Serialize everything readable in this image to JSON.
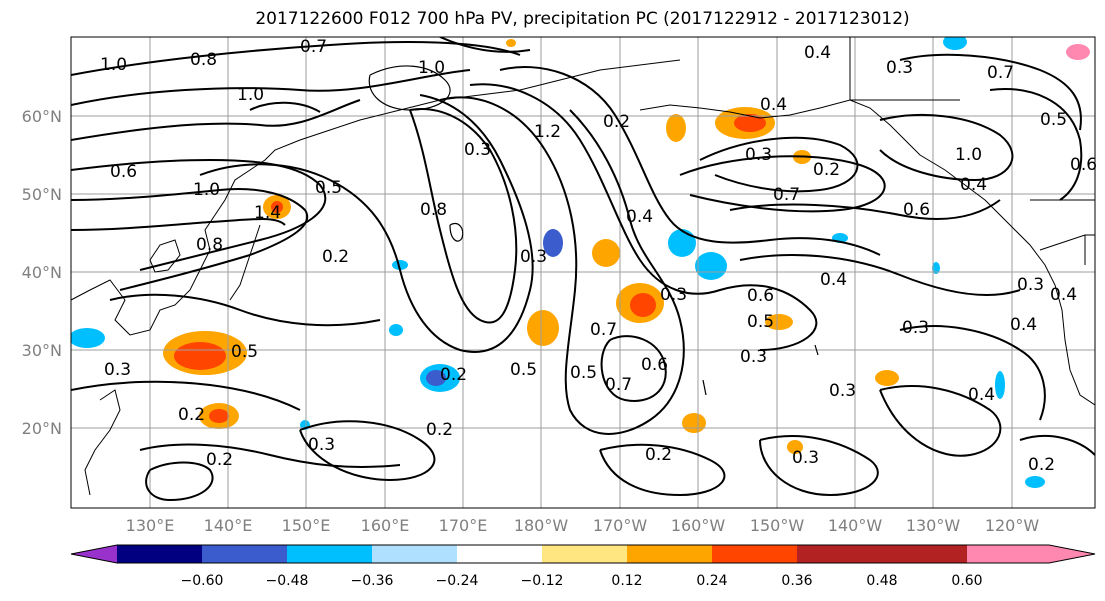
{
  "title": "2017122600 F012 700 hPa PV, precipitation PC (2017122912 - 2017123012)",
  "map": {
    "lat_labels": [
      "60°N",
      "50°N",
      "40°N",
      "30°N",
      "20°N"
    ],
    "lon_labels": [
      "130°E",
      "140°E",
      "150°E",
      "160°E",
      "170°E",
      "180°W",
      "170°W",
      "160°W",
      "150°W",
      "140°W",
      "130°W",
      "120°W"
    ],
    "contour_labels": [
      "1.0",
      "0.7",
      "1.0",
      "1.0",
      "0.8",
      "0.6",
      "0.5",
      "1.0",
      "0.8",
      "1.4",
      "0.2",
      "0.3",
      "1.2",
      "0.2",
      "0.8",
      "0.4",
      "0.3",
      "0.5",
      "0.3",
      "0.2",
      "0.5",
      "0.4",
      "0.6",
      "0.5",
      "0.3",
      "0.5",
      "0.7",
      "0.6",
      "0.2",
      "0.3",
      "0.2",
      "0.2",
      "0.3",
      "0.3",
      "0.2",
      "0.4",
      "0.3",
      "0.7",
      "0.6",
      "0.4",
      "0.3",
      "0.7",
      "1.0",
      "0.6",
      "0.5",
      "0.3",
      "0.4",
      "0.3",
      "0.4",
      "0.2",
      "0.4",
      "0.3",
      "0.2",
      "0.7",
      "0.4"
    ],
    "colors": {
      "contour": "#000000",
      "grid": "#808080",
      "coast": "#000000"
    }
  },
  "colorbar": {
    "tick_labels": [
      "−0.60",
      "−0.48",
      "−0.36",
      "−0.24",
      "−0.12",
      "0.12",
      "0.24",
      "0.36",
      "0.48",
      "0.60"
    ],
    "colors": [
      "#9932cc",
      "#000080",
      "#3a5ccc",
      "#00bfff",
      "#b0e0ff",
      "#ffffff",
      "#ffe680",
      "#ffa500",
      "#ff4500",
      "#b22222",
      "#ff88b0"
    ]
  }
}
